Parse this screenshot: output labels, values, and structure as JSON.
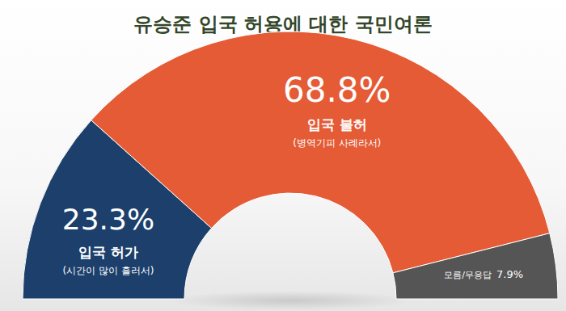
{
  "chart_data": {
    "type": "pie",
    "title": "유승준 입국 허용에 대한 국민여론",
    "categories": [
      "입국 허가",
      "입국 불허",
      "모름/무응답"
    ],
    "values": [
      23.3,
      68.8,
      7.9
    ],
    "value_labels": [
      "23.3%",
      "68.8%",
      "7.9%"
    ],
    "annotations": [
      "(시간이 많이 흘러서)",
      "(병역기피 사례라서)"
    ],
    "colors": [
      "#1c3f6b",
      "#e45b36",
      "#555555"
    ],
    "data_labels": true
  }
}
